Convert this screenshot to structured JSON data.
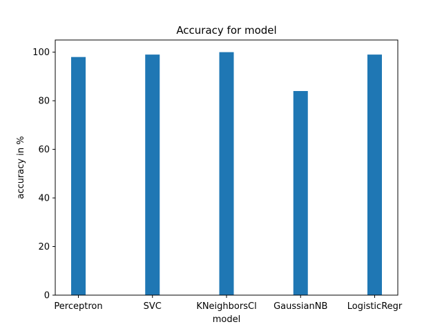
{
  "chart_data": {
    "type": "bar",
    "title": "Accuracy for model",
    "xlabel": "model",
    "ylabel": "accuracy in %",
    "categories": [
      "Perceptron",
      "SVC",
      "KNeighborsCl",
      "GaussianNB",
      "LogisticRegr"
    ],
    "values": [
      98,
      99,
      100,
      84,
      99
    ],
    "ylim": [
      0,
      105
    ],
    "yticks": [
      0,
      20,
      40,
      60,
      80,
      100
    ],
    "grid": false,
    "legend": "none",
    "bar_color": "#1f77b4"
  }
}
